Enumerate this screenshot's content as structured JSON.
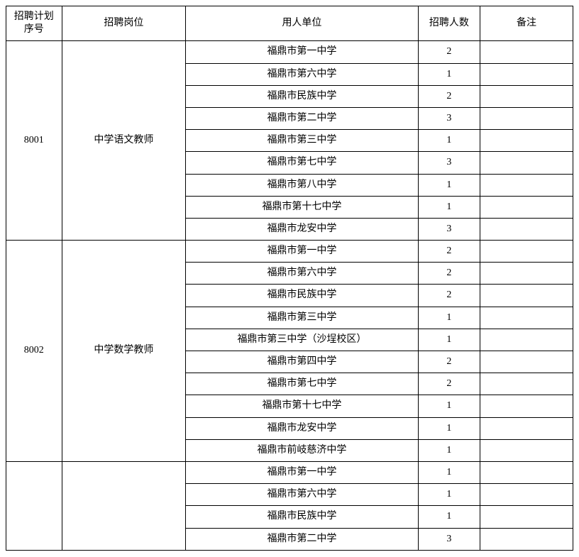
{
  "columns": [
    {
      "key": "seq",
      "label": "招聘计划\n序号"
    },
    {
      "key": "pos",
      "label": "招聘岗位"
    },
    {
      "key": "unit",
      "label": "用人单位"
    },
    {
      "key": "count",
      "label": "招聘人数"
    },
    {
      "key": "note",
      "label": "备注"
    }
  ],
  "groups": [
    {
      "seq": "8001",
      "position": "中学语文教师",
      "rows": [
        {
          "unit": "福鼎市第一中学",
          "count": "2",
          "note": ""
        },
        {
          "unit": "福鼎市第六中学",
          "count": "1",
          "note": ""
        },
        {
          "unit": "福鼎市民族中学",
          "count": "2",
          "note": ""
        },
        {
          "unit": "福鼎市第二中学",
          "count": "3",
          "note": ""
        },
        {
          "unit": "福鼎市第三中学",
          "count": "1",
          "note": ""
        },
        {
          "unit": "福鼎市第七中学",
          "count": "3",
          "note": ""
        },
        {
          "unit": "福鼎市第八中学",
          "count": "1",
          "note": ""
        },
        {
          "unit": "福鼎市第十七中学",
          "count": "1",
          "note": ""
        },
        {
          "unit": "福鼎市龙安中学",
          "count": "3",
          "note": ""
        }
      ]
    },
    {
      "seq": "8002",
      "position": "中学数学教师",
      "rows": [
        {
          "unit": "福鼎市第一中学",
          "count": "2",
          "note": ""
        },
        {
          "unit": "福鼎市第六中学",
          "count": "2",
          "note": ""
        },
        {
          "unit": "福鼎市民族中学",
          "count": "2",
          "note": ""
        },
        {
          "unit": "福鼎市第三中学",
          "count": "1",
          "note": ""
        },
        {
          "unit": "福鼎市第三中学（沙埕校区）",
          "count": "1",
          "note": ""
        },
        {
          "unit": "福鼎市第四中学",
          "count": "2",
          "note": ""
        },
        {
          "unit": "福鼎市第七中学",
          "count": "2",
          "note": ""
        },
        {
          "unit": "福鼎市第十七中学",
          "count": "1",
          "note": ""
        },
        {
          "unit": "福鼎市龙安中学",
          "count": "1",
          "note": ""
        },
        {
          "unit": "福鼎市前岐慈济中学",
          "count": "1",
          "note": ""
        }
      ]
    },
    {
      "seq": "",
      "position": "",
      "rows": [
        {
          "unit": "福鼎市第一中学",
          "count": "1",
          "note": ""
        },
        {
          "unit": "福鼎市第六中学",
          "count": "1",
          "note": ""
        },
        {
          "unit": "福鼎市民族中学",
          "count": "1",
          "note": ""
        },
        {
          "unit": "福鼎市第二中学",
          "count": "3",
          "note": ""
        }
      ]
    }
  ]
}
